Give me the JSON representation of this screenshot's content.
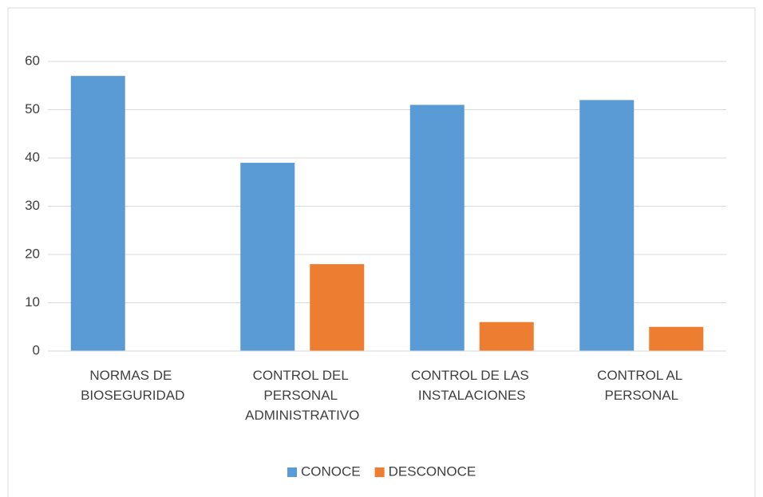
{
  "chart_data": {
    "type": "bar",
    "categories": [
      "NORMAS DE BIOSEGURIDAD",
      "CONTROL DEL PERSONAL ADMINISTRATIVO",
      "CONTROL DE LAS INSTALACIONES",
      "CONTROL AL PERSONAL"
    ],
    "series": [
      {
        "name": "CONOCE",
        "color": "#5b9bd5",
        "values": [
          57,
          39,
          51,
          52
        ]
      },
      {
        "name": "DESCONOCE",
        "color": "#ed7d31",
        "values": [
          0,
          18,
          6,
          5
        ]
      }
    ],
    "ylim": [
      0,
      60
    ],
    "yticks": [
      0,
      10,
      20,
      30,
      40,
      50,
      60
    ],
    "grid": true,
    "legend": "bottom"
  }
}
